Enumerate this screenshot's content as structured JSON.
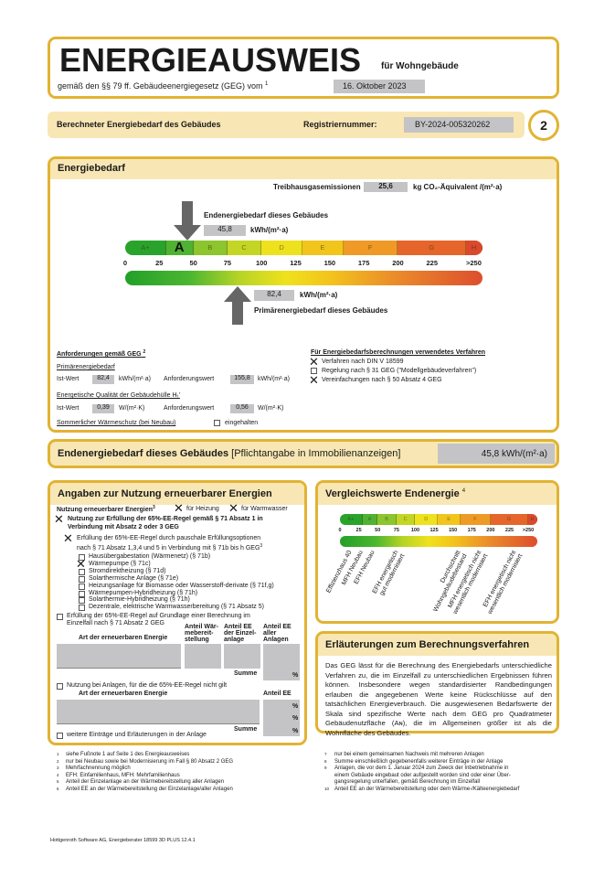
{
  "header": {
    "title": "ENERGIEAUSWEIS",
    "for": "für Wohngebäude",
    "law": "gemäß den §§ 79 ff. Gebäudeenergiegesetz (GEG) vom",
    "law_sup": "1",
    "date": "16. Oktober 2023"
  },
  "subbar": {
    "label": "Berechneter Energiebedarf des Gebäudes",
    "reg_label": "Registriernummer:",
    "reg_value": "BY-2024-005320262",
    "page": "2"
  },
  "energiebedarf": {
    "title": "Energiebedarf",
    "thg_label": "Treibhausgasemissionen",
    "thg_value": "25,6",
    "thg_unit": "kg CO₂-Äquivalent /(m²·a)",
    "end_label": "Endenergiebedarf dieses Gebäudes",
    "end_value": "45,8",
    "end_unit": "kWh/(m²·a)",
    "prim_label": "Primärenergiebedarf dieses Gebäudes",
    "prim_value": "82,4",
    "prim_unit": "kWh/(m²·a)",
    "current_class": "A"
  },
  "chart_data": {
    "type": "bar",
    "classes": [
      {
        "label": "A+",
        "from": 0,
        "to": 30
      },
      {
        "label": "A",
        "from": 30,
        "to": 50
      },
      {
        "label": "B",
        "from": 50,
        "to": 75
      },
      {
        "label": "C",
        "from": 75,
        "to": 100
      },
      {
        "label": "D",
        "from": 100,
        "to": 130
      },
      {
        "label": "E",
        "from": 130,
        "to": 160
      },
      {
        "label": "F",
        "from": 160,
        "to": 200
      },
      {
        "label": "G",
        "from": 200,
        "to": 250
      },
      {
        "label": "H",
        "from": 250,
        "to": 262
      }
    ],
    "ticks": [
      "0",
      "25",
      "50",
      "75",
      "100",
      "125",
      "150",
      "175",
      "200",
      "225",
      ">250"
    ],
    "end_energy": 45.8,
    "primary_energy": 82.4,
    "xlim": [
      0,
      262
    ]
  },
  "anforderungen": {
    "title": "Anforderungen gemäß GEG",
    "title_sup": "2",
    "prim_title": "Primärenergiebedarf",
    "ist": "Ist-Wert",
    "prim_ist": "82,4",
    "kwh": "kWh/(m²·a)",
    "anf": "Anforderungswert",
    "prim_anf": "155,8",
    "hull_title": "Energetische Qualität der Gebäudehülle Hₜ'",
    "hull_ist": "0,39",
    "wmk": "W/(m²·K)",
    "hull_anf": "0,56",
    "summer": "Sommerlicher Wärmeschutz (bei Neubau)",
    "summer_cb": "eingehalten"
  },
  "verfahren": {
    "title": "Für Energiebedarfsberechnungen verwendetes Verfahren",
    "items": [
      {
        "label": "Verfahren nach DIN V 18599",
        "checked": true
      },
      {
        "label": "Regelung nach § 31 GEG (\"Modellgebäudeverfahren\")",
        "checked": false
      },
      {
        "label": "Vereinfachungen nach § 50 Absatz 4 GEG",
        "checked": true
      }
    ]
  },
  "endbar": {
    "label": "Endenergiebedarf dieses Gebäudes",
    "note": "[Pflichtangabe in Immobilienanzeigen]",
    "value": "45,8 kWh/(m²·a)"
  },
  "erneuerbar": {
    "title": "Angaben zur Nutzung erneuerbarer Energien",
    "nutzung": "Nutzung erneuerbarer Energien",
    "nutzung_sup": "3",
    "heizung": "für Heizung",
    "warmwasser": "für Warmwasser",
    "regel1": "Nutzung zur Erfüllung der 65%-EE-Regel gemäß § 71 Absatz 1 in",
    "regel1b": "Verbindung mit Absatz 2 oder 3 GEG",
    "pausch1": "Erfüllung der 65%-EE-Regel durch pauschale Erfüllungsoptionen",
    "pausch2": "nach § 71 Absatz 1,3,4 und 5 in Verbindung mit § 71b bis h GEG",
    "options": [
      {
        "label": "Hausübergabestation (Wärmenetz) (§ 71b)",
        "checked": false
      },
      {
        "label": "Wärmepumpe (§ 71c)",
        "checked": true
      },
      {
        "label": "Stromdirektheizung (§ 71d)",
        "checked": false
      },
      {
        "label": "Solarthermische Anlage (§ 71e)",
        "checked": false
      },
      {
        "label": "Heizungsanlage für Biomasse oder Wasserstoff-derivate (§ 71f,g)",
        "checked": false
      },
      {
        "label": "Wärmepumpen-Hybridheizung (§ 71h)",
        "checked": false
      },
      {
        "label": "Solarthermie-Hybridheizung (§ 71h)",
        "checked": false
      },
      {
        "label": "Dezentrale, elektrische Warmwasserbereitung (§ 71 Absatz 5)",
        "checked": false
      }
    ],
    "einzel1": "Erfüllung der 65%-EE-Regel auf Grundlage einer Berechnung im",
    "einzel2": "Einzelfall nach § 71 Absatz 2 GEG",
    "col_art": "Art der erneuerbaren Energie",
    "col_waerme": "Anteil Wär-\nmebereit-\nstellung",
    "col_einzel": "Anteil EE\nder Einzel-\nanlage",
    "col_alle": "Anteil EE\naller\nAnlagen",
    "summe": "Summe",
    "pct": "%",
    "nicht": "Nutzung bei Anlagen, für die die 65%-EE-Regel nicht gilt",
    "anteil": "Anteil EE",
    "weitere": "weitere Einträge und Erläuterungen in der Anlage"
  },
  "vergleich": {
    "title": "Vergleichswerte Endenergie",
    "sup": "4",
    "refs": [
      {
        "label": "Effizienzhaus 40",
        "value": 10
      },
      {
        "label": "MFH Neubau",
        "value": 25
      },
      {
        "label": "EFH Neubau",
        "value": 35
      },
      {
        "label": "EFH energetisch\ngut modernisiert",
        "value": 72
      },
      {
        "label": "Durchschnitt\nWohngebäudebestand",
        "value": 155
      },
      {
        "label": "MFH energetisch nicht\nwesentlich modernisiert",
        "value": 182
      },
      {
        "label": "EFH energetisch nicht\nwesentlich modernisiert",
        "value": 228
      }
    ]
  },
  "erlaeuterung": {
    "title": "Erläuterungen zum Berechnungsverfahren",
    "text": "Das GEG lässt für die Berechnung des Energiebedarfs unterschiedliche Verfahren zu, die im Einzelfall zu unterschiedlichen Ergebnissen führen können. Insbesondere wegen standardisierter Randbedingungen erlauben die angegebenen Werte keine Rückschlüsse auf den tatsächlichen Energieverbrauch. Die ausgewiesenen Bedarfswerte der Skala sind spezifische Werte nach dem GEG pro Quadratmeter Gebäudenutzfläche (Aɴ), die im Allgemeinen größer ist als die Wohnfläche des Gebäudes."
  },
  "footnotes_left": [
    "siehe Fußnote 1 auf Seite 1 des Energieausweises",
    "nur bei Neubau sowie bei Modernisierung im Fall § 80 Absatz 2 GEG",
    "Mehrfachnennung möglich",
    "EFH: Einfamilienhaus, MFH: Mehrfamilienhaus",
    "Anteil der Einzelanlage an der Wärmebereitstellung aller Anlagen",
    "Anteil EE an der Wärmebereitstellung der Einzelanlage/aller Anlagen"
  ],
  "footnotes_right": [
    {
      "n": "7",
      "t": "nur bei einem gemeinsamen Nachweis mit mehreren Anlagen"
    },
    {
      "n": "8",
      "t": "Summe einschließlich gegebenenfalls weiterer Einträge in der Anlage"
    },
    {
      "n": "9",
      "t": "Anlagen, die vor dem 1. Januar 2024 zum Zweck der Inbetriebnahme in\neinem Gebäude eingebaut oder aufgestellt worden sind oder einer Über-\ngangsregelung unterfallen, gemäß Berechnung im Einzelfall"
    },
    {
      "n": "10",
      "t": "Anteil EE an der Wärmebereitstellung oder dem Wärme-/Kälteenergiebedarf"
    }
  ],
  "footer": "Hottgenroth Software AG, Energieberater 18599 3D PLUS 12.4.1",
  "colors": {
    "frame": "#e2b332",
    "band": "#f8e7b4",
    "field": "#c4c4c6",
    "arrow": "#666666"
  }
}
